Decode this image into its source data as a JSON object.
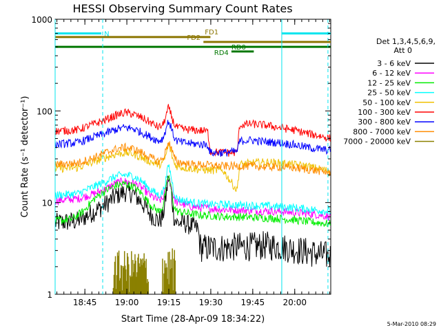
{
  "chart_data": {
    "type": "line",
    "title": "HESSI Observing Summary Count Rates",
    "xlabel": "Start Time (28-Apr-09 18:34:22)",
    "ylabel": "Count Rate (s⁻¹ detector⁻¹)",
    "yscale": "log",
    "ylim": [
      1,
      1000
    ],
    "xlim_minutes": [
      0,
      98.5
    ],
    "y_ticks": [
      1,
      10,
      100,
      1000
    ],
    "x_ticks": [
      {
        "t": 10.63,
        "label": "18:45"
      },
      {
        "t": 25.63,
        "label": "19:00"
      },
      {
        "t": 40.63,
        "label": "19:15"
      },
      {
        "t": 55.63,
        "label": "19:30"
      },
      {
        "t": 70.63,
        "label": "19:45"
      },
      {
        "t": 85.63,
        "label": "20:00"
      }
    ],
    "x_tick_minutes": [
      15,
      30,
      45,
      60,
      75,
      90
    ],
    "legend_title": [
      "Det 1,3,4,5,6,9,",
      "Att 0"
    ],
    "legend_position": "right",
    "footer": "5-Mar-2010 08:29",
    "vlines_cyan": [
      {
        "t": 0,
        "style": "solid"
      },
      {
        "t": 17.0,
        "style": "dashed"
      },
      {
        "t": 81.0,
        "style": "solid"
      },
      {
        "t": 97.5,
        "style": "dashed"
      }
    ],
    "flag_bars": [
      {
        "label": "N",
        "color": "#00e5ee",
        "segments": [
          [
            0,
            16.5
          ],
          [
            81.0,
            98.5
          ]
        ],
        "y": 700
      },
      {
        "label": "FD1",
        "color": "#8b7500",
        "segments": [
          [
            0,
            55.5
          ]
        ],
        "y": 640
      },
      {
        "label": "FD2",
        "color": "#8b7500",
        "segments": [
          [
            53.0,
            98.5
          ]
        ],
        "y": 565
      },
      {
        "label": "RD0",
        "color": "#007700",
        "segments": [
          [
            0,
            98.5
          ]
        ],
        "y": 500
      },
      {
        "label": "RD4",
        "color": "#007700",
        "segments": [
          [
            63.0,
            71.0
          ]
        ],
        "y": 445
      }
    ],
    "series": [
      {
        "name": "3 - 6 keV",
        "color": "#000000",
        "points": [
          [
            0,
            6
          ],
          [
            8,
            6.3
          ],
          [
            14,
            8
          ],
          [
            18,
            9.5
          ],
          [
            22,
            12
          ],
          [
            25,
            13
          ],
          [
            28,
            12.5
          ],
          [
            31,
            10
          ],
          [
            34,
            7.5
          ],
          [
            37,
            6.3
          ],
          [
            38.5,
            7
          ],
          [
            39.5,
            11
          ],
          [
            40.5,
            19
          ],
          [
            41.5,
            13
          ],
          [
            42.5,
            7
          ],
          [
            43.5,
            6
          ],
          [
            46,
            6
          ],
          [
            49,
            5.5
          ],
          [
            51,
            5.2
          ],
          [
            52,
            3.2
          ],
          [
            56,
            3.2
          ],
          [
            60,
            3.2
          ],
          [
            65,
            3.3
          ],
          [
            70,
            3.3
          ],
          [
            75,
            3.4
          ],
          [
            80,
            3.3
          ],
          [
            85,
            3.1
          ],
          [
            90,
            2.9
          ],
          [
            95,
            2.7
          ],
          [
            98.5,
            2.6
          ]
        ]
      },
      {
        "name": "6 - 12 keV",
        "color": "#ff00ff",
        "points": [
          [
            0,
            10.5
          ],
          [
            8,
            11
          ],
          [
            14,
            12.5
          ],
          [
            18,
            14
          ],
          [
            22,
            16.5
          ],
          [
            25,
            17
          ],
          [
            28,
            16.5
          ],
          [
            31,
            14.5
          ],
          [
            34,
            12
          ],
          [
            37,
            10.5
          ],
          [
            38.5,
            11
          ],
          [
            39.5,
            14
          ],
          [
            40.5,
            20
          ],
          [
            41.5,
            15
          ],
          [
            42.5,
            11
          ],
          [
            43.5,
            10
          ],
          [
            46,
            9.5
          ],
          [
            49,
            9
          ],
          [
            52,
            8.8
          ],
          [
            56,
            8.6
          ],
          [
            60,
            8.4
          ],
          [
            65,
            8.3
          ],
          [
            70,
            8.2
          ],
          [
            75,
            8.1
          ],
          [
            80,
            8
          ],
          [
            85,
            7.8
          ],
          [
            90,
            7.6
          ],
          [
            95,
            7.3
          ],
          [
            98.5,
            7
          ]
        ]
      },
      {
        "name": "12 - 25 keV",
        "color": "#00ee00",
        "points": [
          [
            0,
            6.3
          ],
          [
            6,
            6.6
          ],
          [
            10,
            8
          ],
          [
            14,
            11
          ],
          [
            18,
            13.5
          ],
          [
            22,
            15.5
          ],
          [
            25,
            16
          ],
          [
            28,
            15
          ],
          [
            31,
            12.5
          ],
          [
            34,
            9.5
          ],
          [
            37,
            8
          ],
          [
            38.5,
            9
          ],
          [
            39.5,
            13
          ],
          [
            40.5,
            20
          ],
          [
            41.5,
            14
          ],
          [
            42.5,
            9
          ],
          [
            43.5,
            8
          ],
          [
            46,
            7.8
          ],
          [
            49,
            7.5
          ],
          [
            52,
            7.3
          ],
          [
            56,
            7.2
          ],
          [
            60,
            7
          ],
          [
            65,
            7
          ],
          [
            70,
            6.9
          ],
          [
            75,
            6.8
          ],
          [
            80,
            6.7
          ],
          [
            85,
            6.5
          ],
          [
            90,
            6.2
          ],
          [
            95,
            6
          ],
          [
            98.5,
            5.8
          ]
        ]
      },
      {
        "name": "25 - 50 keV",
        "color": "#00ffff",
        "points": [
          [
            0,
            12
          ],
          [
            8,
            12.5
          ],
          [
            14,
            15
          ],
          [
            18,
            17
          ],
          [
            22,
            19.5
          ],
          [
            25,
            20
          ],
          [
            28,
            19.5
          ],
          [
            31,
            17
          ],
          [
            34,
            14
          ],
          [
            37,
            12
          ],
          [
            38.5,
            13
          ],
          [
            39.5,
            17
          ],
          [
            40.5,
            26
          ],
          [
            41.5,
            19
          ],
          [
            42.5,
            13
          ],
          [
            43.5,
            11
          ],
          [
            46,
            10.5
          ],
          [
            49,
            10
          ],
          [
            52,
            9.8
          ],
          [
            56,
            9.5
          ],
          [
            60,
            9.5
          ],
          [
            65,
            9.4
          ],
          [
            70,
            9.3
          ],
          [
            75,
            9.2
          ],
          [
            80,
            9
          ],
          [
            85,
            8.8
          ],
          [
            90,
            8.5
          ],
          [
            95,
            8.2
          ],
          [
            98.5,
            8
          ]
        ]
      },
      {
        "name": "50 - 100 keV",
        "color": "#f0c000",
        "points": [
          [
            0,
            23.5
          ],
          [
            8,
            24
          ],
          [
            14,
            28
          ],
          [
            18,
            31
          ],
          [
            22,
            34
          ],
          [
            25,
            35
          ],
          [
            28,
            34
          ],
          [
            31,
            31
          ],
          [
            34,
            28
          ],
          [
            37,
            26
          ],
          [
            38.5,
            27
          ],
          [
            39.5,
            32
          ],
          [
            40.5,
            43
          ],
          [
            41.5,
            35
          ],
          [
            42.5,
            27
          ],
          [
            43.5,
            25
          ],
          [
            46,
            24
          ],
          [
            49,
            23.5
          ],
          [
            52,
            23
          ],
          [
            56,
            22.5
          ],
          [
            60,
            22.5
          ],
          [
            65,
            13.5
          ],
          [
            66,
            26
          ],
          [
            70,
            27
          ],
          [
            75,
            27.5
          ],
          [
            80,
            27
          ],
          [
            85,
            26
          ],
          [
            90,
            25
          ],
          [
            95,
            23
          ],
          [
            98.5,
            22
          ]
        ]
      },
      {
        "name": "100 - 300 keV",
        "color": "#ff0000",
        "points": [
          [
            0,
            60
          ],
          [
            8,
            62
          ],
          [
            14,
            72
          ],
          [
            18,
            80
          ],
          [
            22,
            90
          ],
          [
            25,
            96
          ],
          [
            28,
            92
          ],
          [
            31,
            84
          ],
          [
            34,
            75
          ],
          [
            37,
            66
          ],
          [
            38.5,
            70
          ],
          [
            39.5,
            85
          ],
          [
            40.5,
            108
          ],
          [
            41.5,
            90
          ],
          [
            42.5,
            72
          ],
          [
            43.5,
            66
          ],
          [
            46,
            63
          ],
          [
            49,
            62
          ],
          [
            52,
            61
          ],
          [
            54.5,
            60
          ],
          [
            55.5,
            36
          ],
          [
            60,
            35
          ],
          [
            65,
            35
          ],
          [
            66,
            70
          ],
          [
            70,
            72
          ],
          [
            75,
            70
          ],
          [
            80,
            66
          ],
          [
            85,
            62
          ],
          [
            90,
            57
          ],
          [
            95,
            53
          ],
          [
            98.5,
            50
          ]
        ]
      },
      {
        "name": "300 - 800 keV",
        "color": "#0000ff",
        "points": [
          [
            0,
            43
          ],
          [
            8,
            45
          ],
          [
            14,
            52
          ],
          [
            18,
            57
          ],
          [
            22,
            63
          ],
          [
            25,
            66
          ],
          [
            28,
            64
          ],
          [
            31,
            58
          ],
          [
            34,
            52
          ],
          [
            37,
            47
          ],
          [
            38.5,
            50
          ],
          [
            39.5,
            62
          ],
          [
            40.5,
            78
          ],
          [
            41.5,
            65
          ],
          [
            42.5,
            52
          ],
          [
            43.5,
            47
          ],
          [
            46,
            45
          ],
          [
            49,
            44
          ],
          [
            52,
            43
          ],
          [
            54.5,
            43
          ],
          [
            55.5,
            35
          ],
          [
            60,
            35
          ],
          [
            65,
            36
          ],
          [
            66,
            47
          ],
          [
            70,
            48
          ],
          [
            75,
            46
          ],
          [
            80,
            45
          ],
          [
            85,
            43
          ],
          [
            90,
            40
          ],
          [
            95,
            38
          ],
          [
            98.5,
            37
          ]
        ]
      },
      {
        "name": "800 - 7000 keV",
        "color": "#ff8c00",
        "points": [
          [
            0,
            26
          ],
          [
            8,
            27
          ],
          [
            14,
            31
          ],
          [
            18,
            35
          ],
          [
            22,
            38.5
          ],
          [
            25,
            40
          ],
          [
            28,
            38.5
          ],
          [
            31,
            35
          ],
          [
            34,
            31
          ],
          [
            37,
            28
          ],
          [
            38.5,
            30
          ],
          [
            39.5,
            36
          ],
          [
            40.5,
            47
          ],
          [
            41.5,
            39
          ],
          [
            42.5,
            31
          ],
          [
            43.5,
            28
          ],
          [
            46,
            27
          ],
          [
            49,
            26
          ],
          [
            52,
            26
          ],
          [
            56,
            25.5
          ],
          [
            60,
            25
          ],
          [
            65,
            25
          ],
          [
            70,
            25
          ],
          [
            75,
            24.5
          ],
          [
            80,
            24.5
          ],
          [
            85,
            24
          ],
          [
            90,
            23
          ],
          [
            95,
            22
          ],
          [
            98.5,
            21
          ]
        ]
      },
      {
        "name": "7000 - 20000 keV",
        "color": "#8b8000",
        "points": []
      }
    ],
    "bursts_7000_20000": [
      {
        "t0": 20.8,
        "t1": 33.3,
        "peak": 3.0
      },
      {
        "t0": 38.4,
        "t1": 43.0,
        "peak": 3.2
      }
    ]
  }
}
